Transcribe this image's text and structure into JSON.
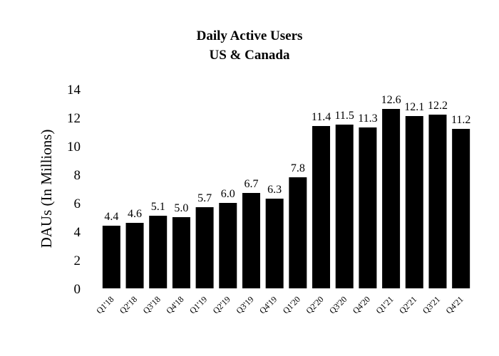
{
  "chart_data": {
    "type": "bar",
    "title": "Daily Active Users",
    "subtitle": "US & Canada",
    "xlabel": "",
    "ylabel": "DAUs (In Millions)",
    "ylim": [
      0,
      14
    ],
    "yticks": [
      0,
      2,
      4,
      6,
      8,
      10,
      12,
      14
    ],
    "grid": false,
    "bar_color": "#000000",
    "categories": [
      "Q1'18",
      "Q2'18",
      "Q3'18",
      "Q4'18",
      "Q1'19",
      "Q2'19",
      "Q3'19",
      "Q4'19",
      "Q1'20",
      "Q2'20",
      "Q3'20",
      "Q4'20",
      "Q1'21",
      "Q2'21",
      "Q3'21",
      "Q4'21"
    ],
    "values": [
      4.4,
      4.6,
      5.1,
      5.0,
      5.7,
      6.0,
      6.7,
      6.3,
      7.8,
      11.4,
      11.5,
      11.3,
      12.6,
      12.1,
      12.2,
      11.2
    ],
    "data_labels": [
      "4.4",
      "4.6",
      "5.1",
      "5.0",
      "5.7",
      "6.0",
      "6.7",
      "6.3",
      "7.8",
      "11.4",
      "11.5",
      "11.3",
      "12.6",
      "12.1",
      "12.2",
      "11.2"
    ]
  }
}
